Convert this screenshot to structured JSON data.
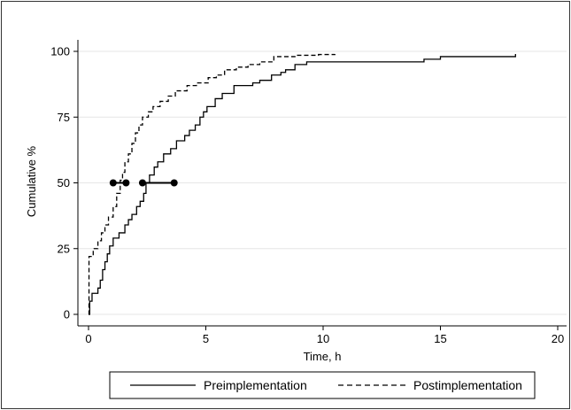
{
  "chart_data": {
    "type": "line",
    "xlabel": "Time, h",
    "ylabel": "Cumulative %",
    "xlim": [
      0,
      20
    ],
    "ylim": [
      0,
      100
    ],
    "xticks": [
      0,
      5,
      10,
      15,
      20
    ],
    "yticks": [
      0,
      25,
      50,
      75,
      100
    ],
    "grid": true,
    "legend_position": "bottom",
    "series": [
      {
        "name": "Preimplementation",
        "style": "solid",
        "color": "#000000",
        "points": [
          [
            0,
            0
          ],
          [
            0.05,
            5
          ],
          [
            0.15,
            8
          ],
          [
            0.4,
            10
          ],
          [
            0.5,
            13
          ],
          [
            0.6,
            17
          ],
          [
            0.7,
            20
          ],
          [
            0.8,
            23
          ],
          [
            0.9,
            26
          ],
          [
            1.05,
            29
          ],
          [
            1.3,
            31
          ],
          [
            1.55,
            34
          ],
          [
            1.7,
            36
          ],
          [
            1.85,
            38
          ],
          [
            2.05,
            41
          ],
          [
            2.2,
            43
          ],
          [
            2.35,
            46
          ],
          [
            2.45,
            50
          ],
          [
            2.6,
            53
          ],
          [
            2.8,
            56
          ],
          [
            2.95,
            58
          ],
          [
            3.2,
            61
          ],
          [
            3.5,
            63
          ],
          [
            3.75,
            66
          ],
          [
            4.1,
            68
          ],
          [
            4.3,
            70
          ],
          [
            4.55,
            72
          ],
          [
            4.75,
            75
          ],
          [
            4.9,
            77
          ],
          [
            5.05,
            79
          ],
          [
            5.4,
            82
          ],
          [
            5.7,
            84
          ],
          [
            6.2,
            87
          ],
          [
            7.0,
            88
          ],
          [
            7.3,
            89
          ],
          [
            7.8,
            91
          ],
          [
            8.2,
            92
          ],
          [
            8.4,
            93
          ],
          [
            8.8,
            95
          ],
          [
            9.3,
            96
          ],
          [
            14.3,
            97
          ],
          [
            15.0,
            98
          ],
          [
            18.2,
            99
          ]
        ]
      },
      {
        "name": "Postimplementation",
        "style": "dashed",
        "color": "#000000",
        "points": [
          [
            0,
            0
          ],
          [
            0.02,
            22
          ],
          [
            0.2,
            25
          ],
          [
            0.4,
            28
          ],
          [
            0.55,
            31
          ],
          [
            0.7,
            34
          ],
          [
            0.85,
            37
          ],
          [
            1.05,
            41
          ],
          [
            1.2,
            46
          ],
          [
            1.35,
            51
          ],
          [
            1.45,
            54
          ],
          [
            1.55,
            58
          ],
          [
            1.7,
            61
          ],
          [
            1.85,
            65
          ],
          [
            2.0,
            69
          ],
          [
            2.15,
            72
          ],
          [
            2.3,
            75
          ],
          [
            2.55,
            77
          ],
          [
            2.75,
            79
          ],
          [
            3.05,
            81
          ],
          [
            3.4,
            83
          ],
          [
            3.7,
            85
          ],
          [
            4.2,
            87
          ],
          [
            4.6,
            88
          ],
          [
            5.1,
            90
          ],
          [
            5.45,
            91
          ],
          [
            5.8,
            93
          ],
          [
            6.3,
            94
          ],
          [
            6.8,
            95
          ],
          [
            7.3,
            96
          ],
          [
            7.9,
            98
          ],
          [
            8.8,
            98.5
          ],
          [
            9.8,
            98.8
          ],
          [
            10.5,
            99
          ]
        ]
      }
    ],
    "ci_markers": [
      {
        "name": "Postimplementation",
        "low": 1.05,
        "high": 1.6,
        "y": 50
      },
      {
        "name": "Preimplementation",
        "low": 2.3,
        "high": 3.65,
        "y": 50
      }
    ]
  }
}
